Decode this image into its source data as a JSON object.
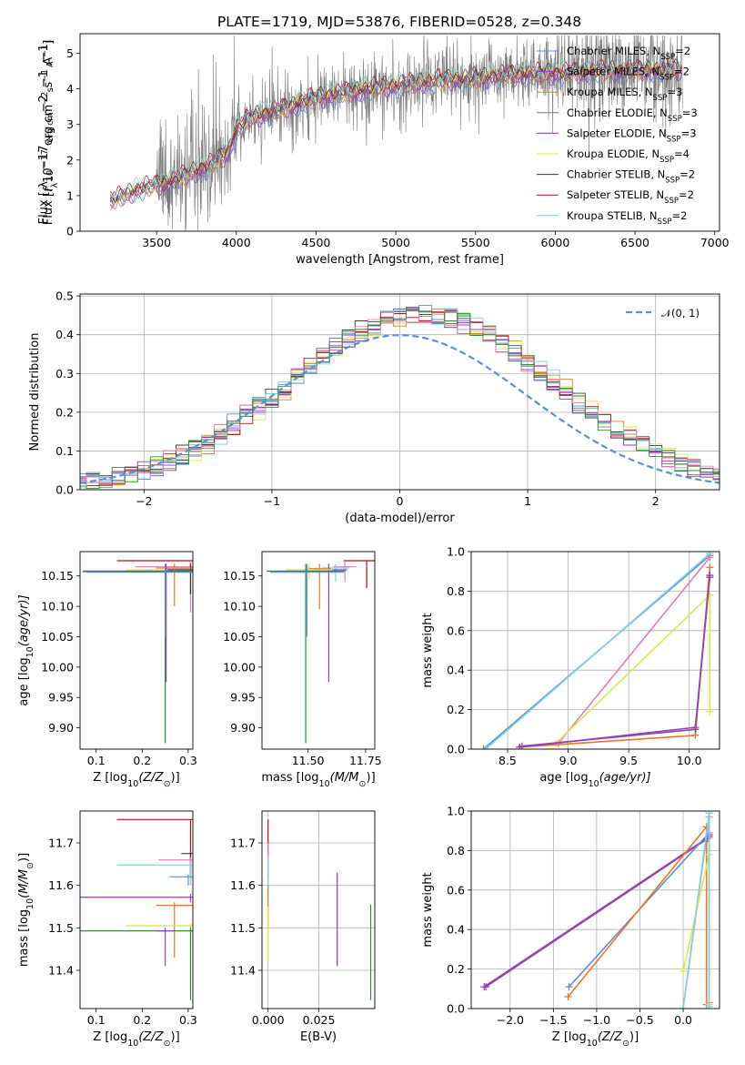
{
  "figure": {
    "title": "PLATE=1719, MJD=53876, FIBERID=0528, z=0.348"
  },
  "colors": {
    "chabrier_miles": "#5b8fd6",
    "salpeter_miles": "#9b3bb5",
    "kroupa_miles": "#e8772a",
    "chabrier_elodie": "#777777",
    "salpeter_elodie": "#a52ab8",
    "kroupa_elodie": "#d9e84a",
    "chabrier_stelib": "#3a3a3a",
    "salpeter_stelib": "#b01212",
    "kroupa_stelib": "#7fd4dc",
    "pink": "#e27bb6",
    "green": "#2e8b3a",
    "normal": "#5b8fd6"
  },
  "chart_data": [
    {
      "id": "spectrum",
      "type": "line",
      "title": "PLATE=1719, MJD=53876, FIBERID=0528, z=0.348",
      "xlabel": "wavelength [Angstrom, rest frame]",
      "ylabel_parts": [
        "Flux [",
        "f",
        "λ",
        "10",
        "−17",
        " erg cm",
        "−2",
        " s",
        "−1",
        " A",
        "−1",
        "]"
      ],
      "xlim": [
        3020,
        7030
      ],
      "ylim": [
        0,
        5.55
      ],
      "xticks": [
        3500,
        4000,
        4500,
        5000,
        5500,
        6000,
        6500,
        7000
      ],
      "yticks": [
        0,
        1,
        2,
        3,
        4,
        5
      ],
      "x_range": [
        3210,
        6800
      ],
      "model_anchor_x": [
        3210,
        3400,
        3550,
        3700,
        3850,
        3950,
        4000,
        4100,
        4300,
        4500,
        4700,
        4900,
        5100,
        5300,
        5500,
        5700,
        5900,
        6100,
        6300,
        6500,
        6800
      ],
      "model_anchor_y": [
        0.85,
        1.2,
        1.35,
        1.6,
        1.9,
        2.2,
        2.9,
        3.2,
        3.45,
        3.75,
        3.9,
        4.05,
        4.15,
        4.25,
        4.3,
        4.38,
        4.42,
        4.45,
        4.5,
        4.52,
        4.55
      ],
      "legend": [
        {
          "main": "Chabrier MILES, N",
          "sub": "SSP",
          "rest": "=2",
          "color": "#5b8fd6"
        },
        {
          "main": "Salpeter MILES, N",
          "sub": "SSP",
          "rest": "=2",
          "color": "#9b3bb5"
        },
        {
          "main": "Kroupa MILES, N",
          "sub": "SSP",
          "rest": "=3",
          "color": "#e8772a"
        },
        {
          "main": "Chabrier ELODIE, N",
          "sub": "SSP",
          "rest": "=3",
          "color": "#777777"
        },
        {
          "main": "Salpeter ELODIE, N",
          "sub": "SSP",
          "rest": "=3",
          "color": "#a52ab8"
        },
        {
          "main": "Kroupa ELODIE, N",
          "sub": "SSP",
          "rest": "=4",
          "color": "#d9e84a"
        },
        {
          "main": "Chabrier STELIB, N",
          "sub": "SSP",
          "rest": "=2",
          "color": "#3a3a3a"
        },
        {
          "main": "Salpeter STELIB, N",
          "sub": "SSP",
          "rest": "=2",
          "color": "#b01212"
        },
        {
          "main": "Kroupa STELIB, N",
          "sub": "SSP",
          "rest": "=2",
          "color": "#7fd4dc"
        }
      ]
    },
    {
      "id": "residuals",
      "type": "histogram",
      "xlabel": "(data-model)/error",
      "ylabel": "Normed distribution",
      "xlim": [
        -2.5,
        2.5
      ],
      "ylim": [
        0,
        0.505
      ],
      "xticks": [
        -2,
        -1,
        0,
        1,
        2
      ],
      "yticks": [
        0.0,
        0.1,
        0.2,
        0.3,
        0.4,
        0.5
      ],
      "grid": true,
      "legend_label": "𝒩(0, 1)",
      "legend_position": "top-right",
      "bin_width": 0.1,
      "series_colors": [
        "#5b8fd6",
        "#9b3bb5",
        "#e8772a",
        "#777777",
        "#a52ab8",
        "#d9e84a",
        "#3a3a3a",
        "#b01212",
        "#7fd4dc",
        "#e27bb6",
        "#2e8b3a"
      ]
    },
    {
      "id": "age_vs_Z",
      "type": "errorbar",
      "xlabel_parts": [
        "Z [log",
        "10",
        "(Z/Z",
        "⊙",
        ")]"
      ],
      "ylabel_parts": [
        "age  [log",
        "10",
        "(age/yr)]"
      ],
      "xlim": [
        0.065,
        0.31
      ],
      "ylim": [
        9.865,
        10.19
      ],
      "xticks": [
        0.1,
        0.2,
        0.3
      ],
      "yticks": [
        9.9,
        9.95,
        10.0,
        10.05,
        10.1,
        10.15
      ],
      "points": [
        {
          "x": 0.305,
          "y": 10.175,
          "xerr": 0.16,
          "ylo": 10.12,
          "yhi": 10.175,
          "color": "#b01212"
        },
        {
          "x": 0.305,
          "y": 10.165,
          "xerr": 0.12,
          "ylo": 10.09,
          "yhi": 10.175,
          "color": "#e27bb6"
        },
        {
          "x": 0.305,
          "y": 10.16,
          "xerr": 0.14,
          "ylo": 10.145,
          "yhi": 10.17,
          "color": "#d9e84a"
        },
        {
          "x": 0.305,
          "y": 10.162,
          "xerr": 0.055,
          "ylo": 10.125,
          "yhi": 10.17,
          "color": "#7fd4dc"
        },
        {
          "x": 0.305,
          "y": 10.16,
          "xerr": 0.05,
          "ylo": 10.12,
          "yhi": 10.17,
          "color": "#3a3a3a"
        },
        {
          "x": 0.27,
          "y": 10.163,
          "xerr": 0.04,
          "ylo": 10.1,
          "yhi": 10.17,
          "color": "#e8772a"
        },
        {
          "x": 0.252,
          "y": 10.158,
          "xerr": 0.18,
          "ylo": 9.975,
          "yhi": 10.17,
          "color": "#9b3bb5"
        },
        {
          "x": 0.25,
          "y": 10.157,
          "xerr": 0.18,
          "ylo": 9.875,
          "yhi": 10.17,
          "color": "#2e8b3a"
        },
        {
          "x": 0.25,
          "y": 10.156,
          "xerr": 0.17,
          "ylo": 10.05,
          "yhi": 10.17,
          "color": "#5b8fd6"
        }
      ]
    },
    {
      "id": "age_vs_mass",
      "type": "errorbar",
      "xlabel_parts": [
        "mass [log",
        "10",
        "(M/M",
        "⊙",
        ")]"
      ],
      "ylabel": "",
      "xlim": [
        11.3,
        11.79
      ],
      "ylim": [
        9.865,
        10.19
      ],
      "xticks": [
        11.5,
        11.75
      ],
      "yticks": [
        9.9,
        9.95,
        10.0,
        10.05,
        10.1,
        10.15
      ],
      "points": [
        {
          "x": 11.755,
          "y": 10.175,
          "xerr": 0.1,
          "ylo": 10.13,
          "yhi": 10.175,
          "color": "#b01212"
        },
        {
          "x": 11.66,
          "y": 10.165,
          "xerr": 0.05,
          "ylo": 10.14,
          "yhi": 10.175,
          "color": "#e27bb6"
        },
        {
          "x": 11.62,
          "y": 10.163,
          "xerr": 0.06,
          "ylo": 10.14,
          "yhi": 10.17,
          "color": "#7fd4dc"
        },
        {
          "x": 11.59,
          "y": 10.16,
          "xerr": 0.08,
          "ylo": 9.975,
          "yhi": 10.17,
          "color": "#9b3bb5"
        },
        {
          "x": 11.55,
          "y": 10.162,
          "xerr": 0.05,
          "ylo": 10.095,
          "yhi": 10.17,
          "color": "#e8772a"
        },
        {
          "x": 11.505,
          "y": 10.16,
          "xerr": 0.1,
          "ylo": 10.145,
          "yhi": 10.17,
          "color": "#d9e84a"
        },
        {
          "x": 11.49,
          "y": 10.158,
          "xerr": 0.17,
          "ylo": 9.875,
          "yhi": 10.17,
          "color": "#2e8b3a"
        },
        {
          "x": 11.495,
          "y": 10.156,
          "xerr": 0.16,
          "ylo": 10.05,
          "yhi": 10.17,
          "color": "#5b8fd6"
        }
      ]
    },
    {
      "id": "mass_weight_vs_age",
      "type": "line",
      "xlabel_parts": [
        "age  [log",
        "10",
        "(age/yr)]"
      ],
      "ylabel": "mass weight",
      "xlim": [
        8.2,
        10.25
      ],
      "ylim": [
        0,
        1.0
      ],
      "xticks": [
        8.5,
        9.0,
        9.5,
        10.0
      ],
      "yticks": [
        0.0,
        0.2,
        0.4,
        0.6,
        0.8,
        1.0
      ],
      "grid": true,
      "series": [
        {
          "color": "#5b8fd6",
          "x": [
            8.3,
            10.17
          ],
          "y": [
            0.0,
            0.98
          ]
        },
        {
          "color": "#7fd4dc",
          "x": [
            8.32,
            10.17
          ],
          "y": [
            0.0,
            0.99
          ]
        },
        {
          "color": "#e27bb6",
          "x": [
            8.92,
            10.17
          ],
          "y": [
            0.03,
            0.97
          ]
        },
        {
          "color": "#d9e84a",
          "x": [
            8.9,
            10.17,
            10.17
          ],
          "y": [
            0.03,
            0.78,
            0.19
          ]
        },
        {
          "color": "#e8772a",
          "x": [
            8.6,
            10.05,
            10.17
          ],
          "y": [
            0.01,
            0.07,
            0.92
          ]
        },
        {
          "color": "#9b3bb5",
          "x": [
            8.6,
            10.05,
            10.17
          ],
          "y": [
            0.01,
            0.11,
            0.88
          ]
        },
        {
          "color": "#8e44ad",
          "x": [
            8.62,
            10.05,
            10.17
          ],
          "y": [
            0.015,
            0.1,
            0.87
          ]
        }
      ]
    },
    {
      "id": "mass_vs_Z",
      "type": "errorbar",
      "xlabel_parts": [
        "Z [log",
        "10",
        "(Z/Z",
        "⊙",
        ")]"
      ],
      "ylabel_parts": [
        "mass [log",
        "10",
        "(M/M",
        "⊙",
        ")]"
      ],
      "xlim": [
        0.065,
        0.31
      ],
      "ylim": [
        11.31,
        11.775
      ],
      "xticks": [
        0.1,
        0.2,
        0.3
      ],
      "yticks": [
        11.4,
        11.5,
        11.6,
        11.7
      ],
      "points": [
        {
          "x": 0.305,
          "y": 11.755,
          "xerr": 0.16,
          "ylo": 11.62,
          "yhi": 11.755,
          "color": "#b01212"
        },
        {
          "x": 0.305,
          "y": 11.675,
          "xerr": 0.02,
          "ylo": 11.62,
          "yhi": 11.68,
          "color": "#3a3a3a"
        },
        {
          "x": 0.305,
          "y": 11.66,
          "xerr": 0.07,
          "ylo": 11.6,
          "yhi": 11.665,
          "color": "#e27bb6"
        },
        {
          "x": 0.305,
          "y": 11.648,
          "xerr": 0.16,
          "ylo": 11.6,
          "yhi": 11.655,
          "color": "#7fd4dc"
        },
        {
          "x": 0.3,
          "y": 11.62,
          "xerr": 0.04,
          "ylo": 11.6,
          "yhi": 11.625,
          "color": "#5b8fd6"
        },
        {
          "x": 0.305,
          "y": 11.572,
          "xerr": 0.24,
          "ylo": 11.56,
          "yhi": 11.58,
          "color": "#9b3bb5"
        },
        {
          "x": 0.27,
          "y": 11.553,
          "xerr": 0.04,
          "ylo": 11.43,
          "yhi": 11.56,
          "color": "#e8772a"
        },
        {
          "x": 0.305,
          "y": 11.505,
          "xerr": 0.14,
          "ylo": 11.45,
          "yhi": 11.51,
          "color": "#d9e84a"
        },
        {
          "x": 0.305,
          "y": 11.493,
          "xerr": 0.24,
          "ylo": 11.33,
          "yhi": 11.5,
          "color": "#2e8b3a"
        },
        {
          "x": 0.25,
          "y": 11.493,
          "xerr": 0.02,
          "ylo": 11.41,
          "yhi": 11.5,
          "color": "#9b3bb5"
        }
      ]
    },
    {
      "id": "mass_vs_ebv",
      "type": "errorbar",
      "xlabel": "E(B-V)",
      "ylabel": "",
      "xlim": [
        -0.003,
        0.0525
      ],
      "ylim": [
        11.31,
        11.775
      ],
      "xticks": [
        0.0,
        0.025
      ],
      "xticklabels": [
        "0.000",
        "0.025"
      ],
      "yticks": [
        11.4,
        11.5,
        11.6,
        11.7
      ],
      "grid": true,
      "points": [
        {
          "x": 0.0,
          "y": 11.7,
          "ylo": 11.62,
          "yhi": 11.755,
          "color": "#b01212"
        },
        {
          "x": 0.0,
          "y": 11.64,
          "ylo": 11.6,
          "yhi": 11.7,
          "color": "#e27bb6"
        },
        {
          "x": 0.0,
          "y": 11.62,
          "ylo": 11.57,
          "yhi": 11.67,
          "color": "#7fd4dc"
        },
        {
          "x": 0.0,
          "y": 11.55,
          "ylo": 11.5,
          "yhi": 11.6,
          "color": "#e8772a"
        },
        {
          "x": 0.0,
          "y": 11.48,
          "ylo": 11.42,
          "yhi": 11.55,
          "color": "#d9e84a"
        },
        {
          "x": 0.034,
          "y": 11.52,
          "ylo": 11.41,
          "yhi": 11.63,
          "color": "#a52ab8"
        },
        {
          "x": 0.0505,
          "y": 11.44,
          "ylo": 11.33,
          "yhi": 11.555,
          "color": "#2e8b3a"
        }
      ]
    },
    {
      "id": "mass_weight_vs_Z",
      "type": "line",
      "xlabel_parts": [
        "Z [log",
        "10",
        "(Z/Z",
        "⊙",
        ")]"
      ],
      "ylabel": "mass weight",
      "xlim": [
        -2.45,
        0.42
      ],
      "ylim": [
        0,
        1.0
      ],
      "xticks": [
        -2.0,
        -1.5,
        -1.0,
        -0.5,
        0.0
      ],
      "yticks": [
        0.0,
        0.2,
        0.4,
        0.6,
        0.8,
        1.0
      ],
      "grid": true,
      "series": [
        {
          "color": "#9b3bb5",
          "x": [
            -2.3,
            0.3,
            0.3
          ],
          "y": [
            0.11,
            0.87,
            0.88
          ]
        },
        {
          "color": "#8e44ad",
          "x": [
            -2.28,
            0.28
          ],
          "y": [
            0.11,
            0.86
          ]
        },
        {
          "color": "#5b8fd6",
          "x": [
            -1.32,
            0.3,
            0.3
          ],
          "y": [
            0.11,
            0.89,
            0.99
          ]
        },
        {
          "color": "#e8772a",
          "x": [
            -1.33,
            0.27,
            0.27
          ],
          "y": [
            0.06,
            0.92,
            0.02
          ]
        },
        {
          "color": "#e27bb6",
          "x": [
            0.0,
            0.3,
            0.3
          ],
          "y": [
            0.0,
            0.97,
            0.03
          ]
        },
        {
          "color": "#d9e84a",
          "x": [
            0.0,
            0.3,
            0.3
          ],
          "y": [
            0.19,
            0.78,
            0.02
          ]
        },
        {
          "color": "#7fd4dc",
          "x": [
            0.0,
            0.3,
            0.3
          ],
          "y": [
            0.0,
            0.99,
            0.01
          ]
        }
      ]
    }
  ]
}
